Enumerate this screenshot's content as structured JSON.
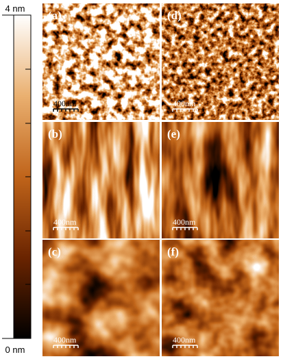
{
  "colorbar": {
    "max_label": "4 nm",
    "min_label": "0 nm"
  },
  "panels": [
    {
      "label": "(a)",
      "scale_bar": "400nm"
    },
    {
      "label": "(b)",
      "scale_bar": "400nm"
    },
    {
      "label": "(c)",
      "scale_bar": "400nm"
    },
    {
      "label": "(d)",
      "scale_bar": "400nm"
    },
    {
      "label": "(e)",
      "scale_bar": "400nm"
    },
    {
      "label": "(f)",
      "scale_bar": "400nm"
    }
  ]
}
